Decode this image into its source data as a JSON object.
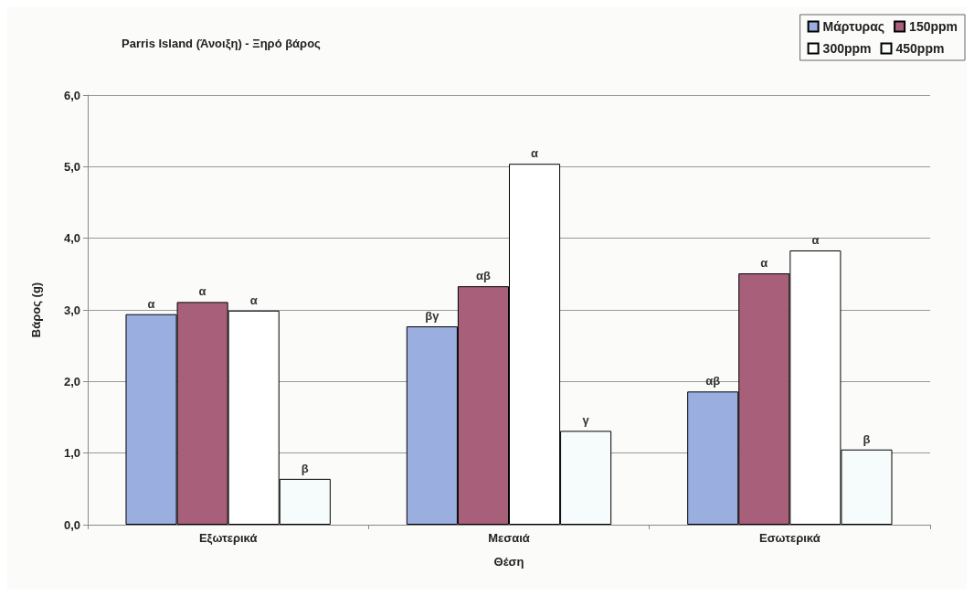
{
  "chart_data": {
    "type": "bar",
    "title": "Parris Island (Άνοιξη) - Ξηρό βάρος",
    "xlabel": "Θέση",
    "ylabel": "Βάρος (g)",
    "categories": [
      "Εξωτερικά",
      "Μεσαιά",
      "Εσωτερικά"
    ],
    "series": [
      {
        "name": "Μάρτυρας",
        "color": "#9aaee0",
        "values": [
          2.94,
          2.77,
          1.86
        ],
        "value_labels": [
          "α",
          "βγ",
          "αβ"
        ]
      },
      {
        "name": "150ppm",
        "color": "#a8607a",
        "values": [
          3.11,
          3.33,
          3.51
        ],
        "value_labels": [
          "α",
          "αβ",
          "α"
        ]
      },
      {
        "name": "300ppm",
        "color": "#ffffff",
        "values": [
          2.99,
          5.04,
          3.83
        ],
        "value_labels": [
          "α",
          "α",
          "α"
        ]
      },
      {
        "name": "450ppm",
        "color": "#f6fbfb",
        "values": [
          0.64,
          1.31,
          1.05
        ],
        "value_labels": [
          "β",
          "γ",
          "β"
        ]
      }
    ],
    "ylim": [
      0,
      6
    ],
    "yticks": [
      {
        "value": 0,
        "label": "0,0"
      },
      {
        "value": 1,
        "label": "1,0"
      },
      {
        "value": 2,
        "label": "2,0"
      },
      {
        "value": 3,
        "label": "3,0"
      },
      {
        "value": 4,
        "label": "4,0"
      },
      {
        "value": 5,
        "label": "5,0"
      },
      {
        "value": 6,
        "label": "6,0"
      }
    ],
    "grid": "y",
    "legend": "top right"
  }
}
